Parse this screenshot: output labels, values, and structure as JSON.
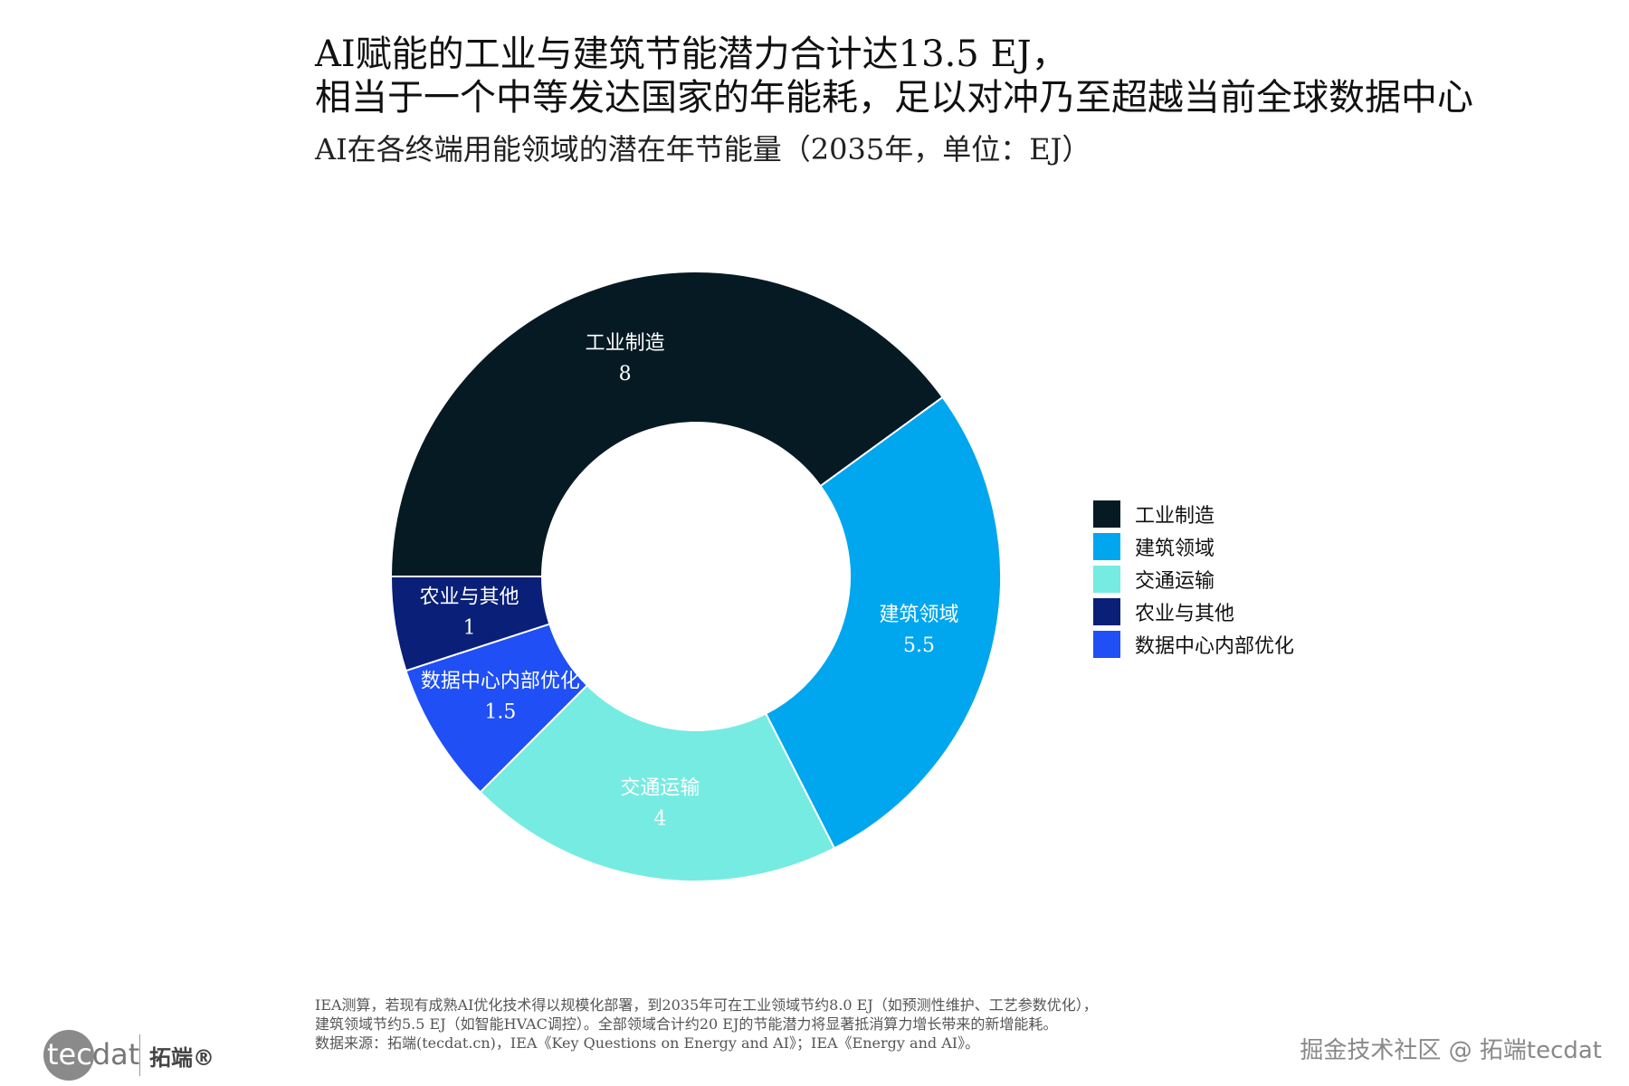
{
  "title_line1": "AI赋能的工业与建筑节能潜力合计达13.5 EJ，",
  "title_line2": "相当于一个中等发达国家的年能耗，足以对冲乃至超越当前全球数据中心",
  "chart_data": {
    "type": "pie",
    "donut": true,
    "title": "AI在各终端用能领域的潜在年节能量（2035年，单位：EJ）",
    "categories": [
      "工业制造",
      "建筑领域",
      "交通运输",
      "农业与其他",
      "数据中心内部优化"
    ],
    "values": [
      8,
      5.5,
      4,
      1,
      1.5
    ],
    "value_labels": [
      "8",
      "5.5",
      "4",
      "1",
      "1.5"
    ],
    "slice_order": [
      0,
      1,
      2,
      4,
      3
    ],
    "colors": [
      "#061a24",
      "#00a6ee",
      "#76ebe2",
      "#0a1f78",
      "#1f4ff5"
    ],
    "label_colors": [
      "#ffffff",
      "#ffffff",
      "#ffffff",
      "#ffffff",
      "#ffffff"
    ],
    "legend_position": "right"
  },
  "footnotes": [
    "IEA测算，若现有成熟AI优化技术得以规模化部署，到2035年可在工业领域节约8.0 EJ（如预测性维护、工艺参数优化），",
    "建筑领域节约5.5 EJ（如智能HVAC调控）。全部领域合计约20 EJ的节能潜力将显著抵消算力增长带来的新增能耗。",
    "数据来源：拓端(tecdat.cn)，IEA《Key Questions on Energy and AI》；IEA《Energy and AI》。"
  ],
  "logo": {
    "tec": "tec",
    "dat": "dat",
    "cn": "拓端®"
  },
  "watermark": "掘金技术社区 @ 拓端tecdat"
}
